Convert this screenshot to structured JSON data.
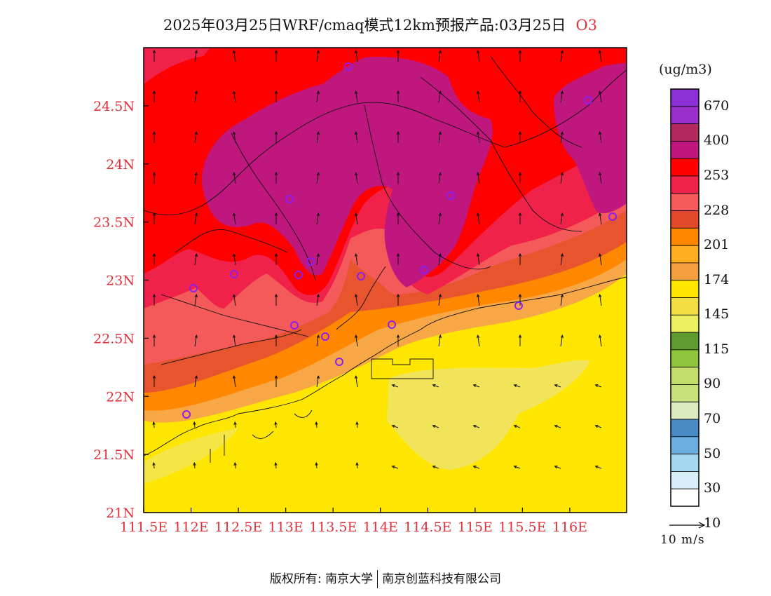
{
  "title": {
    "main": "2025年03月25日WRF/cmaq模式12km预报产品:03月25日",
    "species": "O3"
  },
  "map": {
    "lat_labels": [
      "24.5N",
      "24N",
      "23.5N",
      "23N",
      "22.5N",
      "22N",
      "21.5N",
      "21N"
    ],
    "lon_labels": [
      "111.5E",
      "112E",
      "112.5E",
      "113E",
      "113.5E",
      "114E",
      "114.5E",
      "115E",
      "115.5E",
      "116E"
    ],
    "lat_range": [
      21,
      25
    ],
    "lon_range": [
      111.5,
      116.6
    ]
  },
  "colorbar": {
    "unit": "(ug/m3)",
    "labels": [
      "670",
      "400",
      "253",
      "228",
      "201",
      "174",
      "145",
      "115",
      "90",
      "70",
      "50",
      "30",
      "10"
    ],
    "colors": [
      "#8b2fd6",
      "#9b2fcc",
      "#b02a5e",
      "#c0177e",
      "#ff0000",
      "#f0224a",
      "#f55a5a",
      "#e04a2a",
      "#ff8800",
      "#ffae22",
      "#f5a040",
      "#ffe600",
      "#f2dd44",
      "#eaf060",
      "#5f9a2e",
      "#8cc43c",
      "#c4dc6c",
      "#c8e07c",
      "#dceac0",
      "#4a8ac4",
      "#6caee0",
      "#a4d8f0",
      "#d8eef8",
      "#ffffff"
    ]
  },
  "wind_reference": {
    "label": "10 m/s"
  },
  "colors": {
    "label_red": "#e0303a",
    "o3_high": "#c0177e",
    "o3_253": "#ff0000",
    "o3_low": "#ffe600"
  },
  "copyright": {
    "left": "版权所有: 南京大学",
    "right": "南京创蓝科技有限公司"
  }
}
